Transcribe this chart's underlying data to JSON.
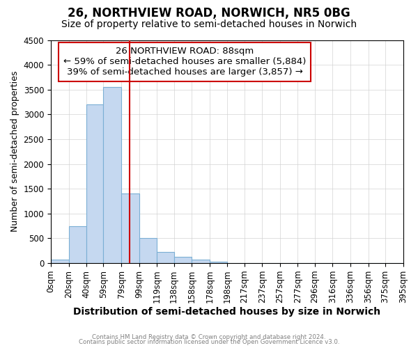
{
  "title": "26, NORTHVIEW ROAD, NORWICH, NR5 0BG",
  "subtitle": "Size of property relative to semi-detached houses in Norwich",
  "xlabel": "Distribution of semi-detached houses by size in Norwich",
  "ylabel": "Number of semi-detached properties",
  "footnote1": "Contains HM Land Registry data © Crown copyright and database right 2024.",
  "footnote2": "Contains public sector information licensed under the Open Government Licence v3.0.",
  "annotation_line1": "26 NORTHVIEW ROAD: 88sqm",
  "annotation_line2": "← 59% of semi-detached houses are smaller (5,884)",
  "annotation_line3": "39% of semi-detached houses are larger (3,857) →",
  "bar_edges": [
    0,
    20,
    40,
    59,
    79,
    99,
    119,
    138,
    158,
    178,
    198,
    217,
    237,
    257,
    277,
    296,
    316,
    336,
    356,
    375,
    395
  ],
  "bar_labels": [
    "0sqm",
    "20sqm",
    "40sqm",
    "59sqm",
    "79sqm",
    "99sqm",
    "119sqm",
    "138sqm",
    "158sqm",
    "178sqm",
    "198sqm",
    "217sqm",
    "237sqm",
    "257sqm",
    "277sqm",
    "296sqm",
    "316sqm",
    "336sqm",
    "356sqm",
    "375sqm",
    "395sqm"
  ],
  "bar_heights": [
    75,
    750,
    3200,
    3550,
    1400,
    500,
    225,
    130,
    75,
    25,
    5,
    3,
    0,
    0,
    0,
    0,
    0,
    0,
    0,
    0
  ],
  "bar_color": "#c5d8f0",
  "bar_edge_color": "#7bafd4",
  "vline_x": 88,
  "vline_color": "#cc0000",
  "box_color": "#cc0000",
  "ylim": [
    0,
    4500
  ],
  "yticks": [
    0,
    500,
    1000,
    1500,
    2000,
    2500,
    3000,
    3500,
    4000,
    4500
  ],
  "title_fontsize": 12,
  "subtitle_fontsize": 10,
  "xlabel_fontsize": 10,
  "ylabel_fontsize": 9,
  "tick_fontsize": 8.5,
  "annot_fontsize": 9.5
}
